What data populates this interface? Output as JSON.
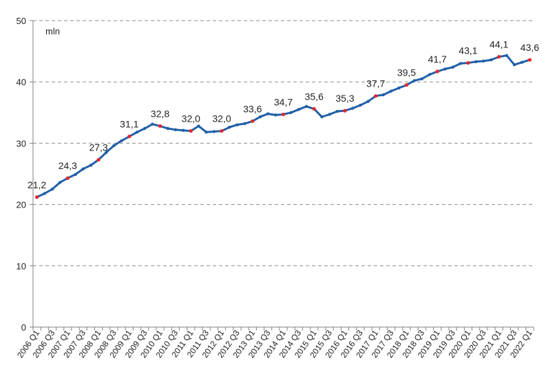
{
  "chart_data": {
    "type": "line",
    "unit_label": "mln",
    "ylim": [
      0,
      50
    ],
    "y_ticks": [
      0,
      10,
      20,
      30,
      40,
      50
    ],
    "grid": "horizontal dashed",
    "x_tick_labels": [
      "2006 Q1",
      "2006 Q3",
      "2007 Q1",
      "2007 Q3",
      "2008 Q1",
      "2008 Q3",
      "2009 Q1",
      "2009 Q3",
      "2010 Q1",
      "2010 Q3",
      "2011 Q1",
      "2011 Q3",
      "2012 Q1",
      "2012 Q3",
      "2013 Q1",
      "2013 Q3",
      "2014 Q1",
      "2014 Q3",
      "2015 Q1",
      "2015 Q3",
      "2016 Q1",
      "2016 Q3",
      "2017 Q1",
      "2017 Q3",
      "2018 Q1",
      "2018 Q3",
      "2019 Q1",
      "2019 Q3",
      "2020 Q1",
      "2020 Q3",
      "2021 Q1",
      "2021 Q3",
      "2022 Q1"
    ],
    "x": [
      "2006 Q1",
      "2006 Q2",
      "2006 Q3",
      "2006 Q4",
      "2007 Q1",
      "2007 Q2",
      "2007 Q3",
      "2007 Q4",
      "2008 Q1",
      "2008 Q2",
      "2008 Q3",
      "2008 Q4",
      "2009 Q1",
      "2009 Q2",
      "2009 Q3",
      "2009 Q4",
      "2010 Q1",
      "2010 Q2",
      "2010 Q3",
      "2010 Q4",
      "2011 Q1",
      "2011 Q2",
      "2011 Q3",
      "2011 Q4",
      "2012 Q1",
      "2012 Q2",
      "2012 Q3",
      "2012 Q4",
      "2013 Q1",
      "2013 Q2",
      "2013 Q3",
      "2013 Q4",
      "2014 Q1",
      "2014 Q2",
      "2014 Q3",
      "2014 Q4",
      "2015 Q1",
      "2015 Q2",
      "2015 Q3",
      "2015 Q4",
      "2016 Q1",
      "2016 Q2",
      "2016 Q3",
      "2016 Q4",
      "2017 Q1",
      "2017 Q2",
      "2017 Q3",
      "2017 Q4",
      "2018 Q1",
      "2018 Q2",
      "2018 Q3",
      "2018 Q4",
      "2019 Q1",
      "2019 Q2",
      "2019 Q3",
      "2019 Q4",
      "2020 Q1",
      "2020 Q2",
      "2020 Q3",
      "2020 Q4",
      "2021 Q1",
      "2021 Q2",
      "2021 Q3",
      "2021 Q4",
      "2022 Q1"
    ],
    "values": [
      21.2,
      21.8,
      22.5,
      23.6,
      24.3,
      24.9,
      25.8,
      26.4,
      27.3,
      28.5,
      29.6,
      30.4,
      31.1,
      31.8,
      32.4,
      33.1,
      32.8,
      32.4,
      32.2,
      32.1,
      32.0,
      32.8,
      31.8,
      31.9,
      32.0,
      32.6,
      33.0,
      33.2,
      33.6,
      34.3,
      34.8,
      34.6,
      34.7,
      35.0,
      35.5,
      36.0,
      35.6,
      34.3,
      34.7,
      35.2,
      35.3,
      35.7,
      36.2,
      36.8,
      37.7,
      37.9,
      38.5,
      39.0,
      39.5,
      40.2,
      40.5,
      41.2,
      41.7,
      42.1,
      42.4,
      43.0,
      43.1,
      43.3,
      43.4,
      43.6,
      44.1,
      44.3,
      42.8,
      43.2,
      43.6
    ],
    "annotated_labels": [
      {
        "x": "2006 Q1",
        "label": "21,2"
      },
      {
        "x": "2007 Q1",
        "label": "24,3"
      },
      {
        "x": "2008 Q1",
        "label": "27,3"
      },
      {
        "x": "2009 Q1",
        "label": "31,1"
      },
      {
        "x": "2010 Q1",
        "label": "32,8"
      },
      {
        "x": "2011 Q1",
        "label": "32,0"
      },
      {
        "x": "2012 Q1",
        "label": "32,0"
      },
      {
        "x": "2013 Q1",
        "label": "33,6"
      },
      {
        "x": "2014 Q1",
        "label": "34,7"
      },
      {
        "x": "2015 Q1",
        "label": "35,6"
      },
      {
        "x": "2016 Q1",
        "label": "35,3"
      },
      {
        "x": "2017 Q1",
        "label": "37,7"
      },
      {
        "x": "2018 Q1",
        "label": "39,5"
      },
      {
        "x": "2019 Q1",
        "label": "41,7"
      },
      {
        "x": "2020 Q1",
        "label": "43,1"
      },
      {
        "x": "2021 Q1",
        "label": "44,1"
      },
      {
        "x": "2022 Q1",
        "label": "43,6"
      }
    ],
    "line_color": "#1f5fa8",
    "q1_marker_color": "#e8262a",
    "grid_color": "#8c8c8c"
  }
}
